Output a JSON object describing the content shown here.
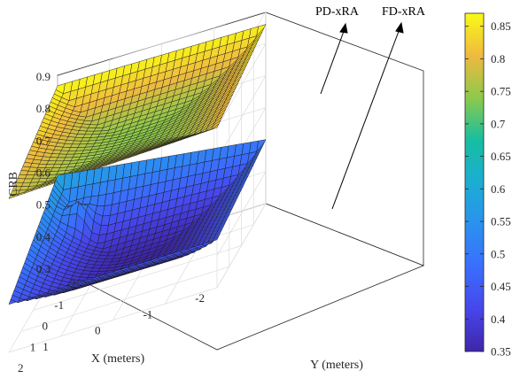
{
  "chart_data": {
    "type": "surface",
    "zlabel": "CRB",
    "xlabel": "X (meters)",
    "ylabel": "Y (meters)",
    "xlim": [
      -2,
      2
    ],
    "ylim": [
      -2,
      2
    ],
    "zlim": [
      0.3,
      0.9
    ],
    "x_ticks": [
      "-2",
      "-1",
      "0",
      "1",
      "2"
    ],
    "y_ticks": [
      "-2",
      "-1",
      "0",
      "1",
      "2"
    ],
    "z_ticks": [
      "0.3",
      "0.4",
      "0.5",
      "0.6",
      "0.7",
      "0.8",
      "0.9"
    ],
    "grid": true,
    "colormap": "parula",
    "colorbar": {
      "range": [
        0.35,
        0.87
      ],
      "ticks": [
        "0.35",
        "0.4",
        "0.45",
        "0.5",
        "0.55",
        "0.6",
        "0.65",
        "0.7",
        "0.75",
        "0.8",
        "0.85"
      ]
    },
    "series": [
      {
        "name": "PD-xRA",
        "min": 0.74,
        "max": 0.87,
        "corners": [
          0.87,
          0.86,
          0.8,
          0.78
        ]
      },
      {
        "name": "FD-xRA",
        "min": 0.35,
        "max": 0.59,
        "corners": [
          0.59,
          0.5,
          0.45,
          0.45
        ],
        "peak_at": [
          1.4,
          -1.3
        ],
        "peak_value": 0.43
      }
    ]
  }
}
